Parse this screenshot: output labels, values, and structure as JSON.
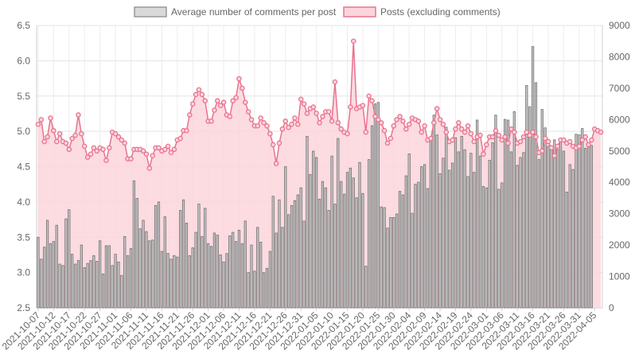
{
  "chart_data": {
    "type": "bar",
    "legend": {
      "placement": "top",
      "items": [
        {
          "label": "Average number of comments per post",
          "fill": "#d9d9d9",
          "stroke": "#999999"
        },
        {
          "label": "Posts (excluding comments)",
          "fill": "#fcd5dc",
          "stroke": "#e8738f"
        }
      ]
    },
    "y_left": {
      "min": 2.5,
      "max": 6.5,
      "ticks": [
        "2.5",
        "3.0",
        "3.5",
        "4.0",
        "4.5",
        "5.0",
        "5.5",
        "6.0",
        "6.5"
      ]
    },
    "y_right": {
      "min": 0,
      "max": 9000,
      "ticks": [
        "0",
        "1000",
        "2000",
        "3000",
        "4000",
        "5000",
        "6000",
        "7000",
        "8000",
        "9000"
      ]
    },
    "x_tick_labels": [
      "2021-10-07",
      "2021-10-12",
      "2021-10-17",
      "2021-10-22",
      "2021-10-27",
      "2021-11-01",
      "2021-11-06",
      "2021-11-11",
      "2021-11-16",
      "2021-11-21",
      "2021-11-26",
      "2021-12-01",
      "2021-12-06",
      "2021-12-11",
      "2021-12-16",
      "2021-12-21",
      "2021-12-26",
      "2021-12-31",
      "2022-01-05",
      "2022-01-10",
      "2022-01-15",
      "2022-01-20",
      "2022-01-25",
      "2022-01-30",
      "2022-02-04",
      "2022-02-09",
      "2022-02-14",
      "2022-02-19",
      "2022-02-24",
      "2022-03-01",
      "2022-03-06",
      "2022-03-11",
      "2022-03-16",
      "2022-03-21",
      "2022-03-26",
      "2022-03-31",
      "2022-04-05"
    ],
    "grid": true,
    "series": [
      {
        "name": "Average number of comments per post",
        "type": "bar",
        "axis": "left",
        "color": "#999999",
        "values": [
          3.5,
          3.19,
          3.36,
          3.74,
          3.41,
          3.44,
          3.67,
          3.12,
          3.1,
          3.76,
          3.89,
          3.26,
          3.12,
          3.17,
          3.39,
          3.07,
          3.13,
          3.17,
          3.24,
          3.16,
          3.45,
          2.98,
          3.38,
          3.38,
          3.1,
          3.26,
          3.15,
          2.96,
          3.51,
          3.24,
          3.34,
          4.3,
          4.05,
          3.62,
          3.74,
          3.58,
          3.45,
          3.46,
          3.95,
          4.0,
          3.3,
          3.79,
          3.27,
          3.19,
          3.24,
          3.22,
          3.88,
          4.03,
          3.7,
          3.24,
          3.35,
          3.57,
          3.97,
          3.51,
          3.91,
          3.41,
          3.37,
          3.56,
          3.53,
          3.25,
          3.15,
          3.27,
          3.52,
          3.57,
          3.44,
          3.6,
          3.41,
          3.73,
          3.0,
          3.39,
          3.02,
          3.64,
          3.43,
          3.0,
          3.06,
          3.3,
          4.08,
          3.56,
          4.03,
          3.64,
          4.5,
          3.82,
          3.95,
          4.02,
          4.1,
          4.2,
          3.73,
          4.93,
          4.39,
          4.72,
          4.63,
          4.04,
          4.29,
          4.2,
          3.88,
          4.65,
          3.97,
          4.9,
          4.29,
          4.11,
          4.42,
          4.48,
          4.34,
          4.06,
          4.56,
          4.12,
          3.09,
          4.6,
          5.08,
          5.39,
          5.41,
          3.93,
          3.92,
          3.63,
          3.78,
          3.78,
          3.83,
          4.15,
          4.1,
          4.37,
          4.68,
          3.84,
          4.25,
          4.28,
          4.5,
          4.53,
          4.19,
          4.87,
          5.23,
          4.95,
          4.4,
          4.62,
          5.06,
          4.45,
          4.55,
          4.91,
          4.71,
          4.93,
          4.74,
          4.36,
          4.69,
          4.42,
          5.16,
          4.65,
          4.22,
          4.2,
          4.59,
          4.84,
          5.23,
          4.18,
          4.27,
          5.17,
          5.16,
          4.71,
          5.28,
          4.52,
          4.63,
          4.7,
          5.65,
          5.35,
          6.2,
          5.69,
          4.6,
          5.31,
          5.05,
          4.79,
          4.78,
          4.88,
          4.74,
          4.87,
          4.72,
          4.14,
          4.53,
          4.46,
          4.96,
          4.95,
          5.04,
          4.76,
          4.78,
          4.8
        ]
      },
      {
        "name": "Posts (excluding comments)",
        "type": "area",
        "axis": "right",
        "color": "#e8738f",
        "values": [
          5850,
          6000,
          5300,
          5450,
          6050,
          5650,
          5300,
          5550,
          5300,
          5250,
          5050,
          5400,
          5500,
          6150,
          5550,
          5150,
          4800,
          4900,
          5100,
          5000,
          5100,
          5050,
          4700,
          5100,
          5600,
          5550,
          5450,
          5350,
          5250,
          4750,
          4750,
          5050,
          5050,
          5050,
          5000,
          4900,
          4450,
          4850,
          5100,
          5100,
          5000,
          5050,
          5150,
          4950,
          5050,
          5350,
          5400,
          5650,
          5650,
          6150,
          6500,
          6800,
          6950,
          6800,
          6600,
          5950,
          5950,
          6300,
          6600,
          6450,
          6550,
          6150,
          6100,
          6600,
          6700,
          7300,
          7000,
          6550,
          6250,
          6000,
          5800,
          5800,
          6050,
          5900,
          5800,
          5550,
          5200,
          4600,
          5250,
          5700,
          5950,
          5750,
          5850,
          6050,
          5850,
          6650,
          6500,
          6200,
          6350,
          6400,
          6200,
          5900,
          6100,
          6250,
          6250,
          5950,
          7200,
          5900,
          5700,
          5600,
          5550,
          6400,
          8500,
          6350,
          6400,
          6450,
          5600,
          6750,
          6600,
          6100,
          6000,
          5900,
          5650,
          5250,
          5400,
          5800,
          6000,
          6100,
          5950,
          5700,
          5850,
          6050,
          6000,
          5950,
          5600,
          5800,
          5350,
          5400,
          5900,
          6350,
          6000,
          5850,
          5600,
          5300,
          5350,
          5700,
          5900,
          5700,
          5600,
          5800,
          5550,
          5300,
          5450,
          5500,
          4900,
          5200,
          5450,
          5450,
          5650,
          5500,
          5350,
          5450,
          5250,
          5700,
          5600,
          5250,
          5300,
          5450,
          5600,
          5500,
          5600,
          5450,
          4950,
          5000,
          5400,
          5300,
          5100,
          4850,
          5150,
          5350,
          5350,
          5250,
          5300,
          5150,
          5100,
          5150,
          5350,
          5450,
          5200,
          5350,
          5700,
          5650,
          5600
        ]
      }
    ]
  }
}
